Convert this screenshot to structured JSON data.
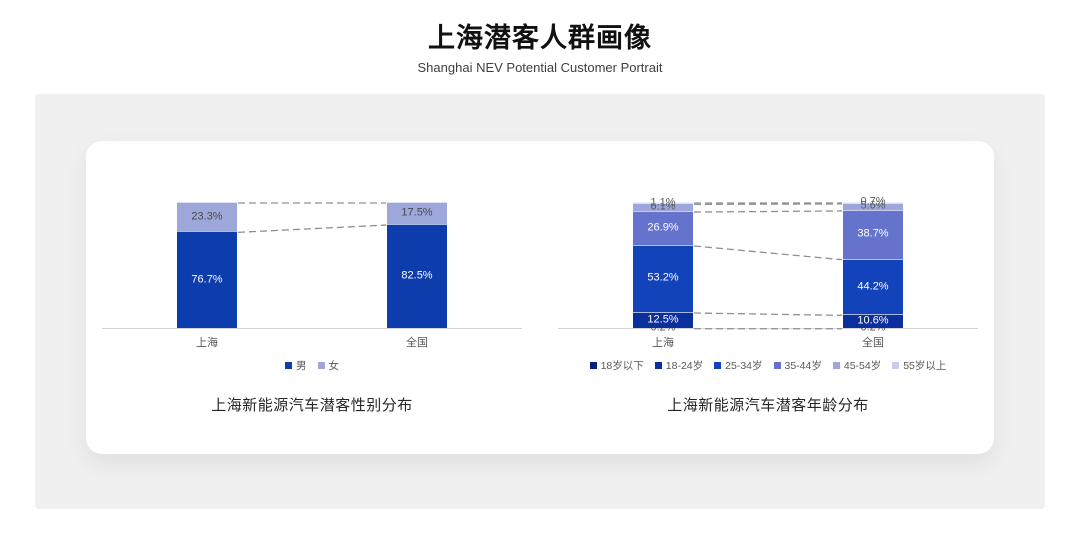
{
  "page": {
    "title": "上海潜客人群画像",
    "subtitle": "Shanghai NEV Potential Customer Portrait"
  },
  "colors": {
    "panel_bg": "#f0f0f1",
    "card_bg": "#ffffff",
    "axis": "#d4d4d4",
    "connector": "#8f8f8f",
    "text_dark": "#1a1a1a",
    "text_gray": "#595959"
  },
  "chart_data": [
    {
      "type": "bar",
      "stacked": true,
      "unit": "%",
      "title": "上海新能源汽车潜客性别分布",
      "categories": [
        "上海",
        "全国"
      ],
      "series": [
        {
          "name": "男",
          "color": "#0d3cad",
          "label_color": "#ffffff",
          "values": [
            76.7,
            82.5
          ]
        },
        {
          "name": "女",
          "color": "#9da7da",
          "label_color": "#4a4a4a",
          "values": [
            23.3,
            17.5
          ]
        }
      ],
      "legend_position": "bottom",
      "connector_style": "dashed",
      "ylim": [
        0,
        100
      ],
      "grid": false
    },
    {
      "type": "bar",
      "stacked": true,
      "unit": "%",
      "title": "上海新能源汽车潜客年龄分布",
      "categories": [
        "上海",
        "全国"
      ],
      "series": [
        {
          "name": "18岁以下",
          "color": "#08207e",
          "label_color": "#595959",
          "values": [
            0.2,
            0.2
          ]
        },
        {
          "name": "18-24岁",
          "color": "#0b2f9c",
          "label_color": "#ffffff",
          "values": [
            12.5,
            10.6
          ]
        },
        {
          "name": "25-34岁",
          "color": "#1343ba",
          "label_color": "#ffffff",
          "values": [
            53.2,
            44.2
          ]
        },
        {
          "name": "35-44岁",
          "color": "#6573cc",
          "label_color": "#ffffff",
          "values": [
            26.9,
            38.7
          ]
        },
        {
          "name": "45-54岁",
          "color": "#9ca6db",
          "label_color": "#595959",
          "values": [
            6.1,
            5.6
          ]
        },
        {
          "name": "55岁以上",
          "color": "#c9ceec",
          "label_color": "#595959",
          "values": [
            1.1,
            0.7
          ]
        }
      ],
      "legend_position": "bottom",
      "connector_style": "dashed",
      "ylim": [
        0,
        100
      ],
      "grid": false
    }
  ]
}
